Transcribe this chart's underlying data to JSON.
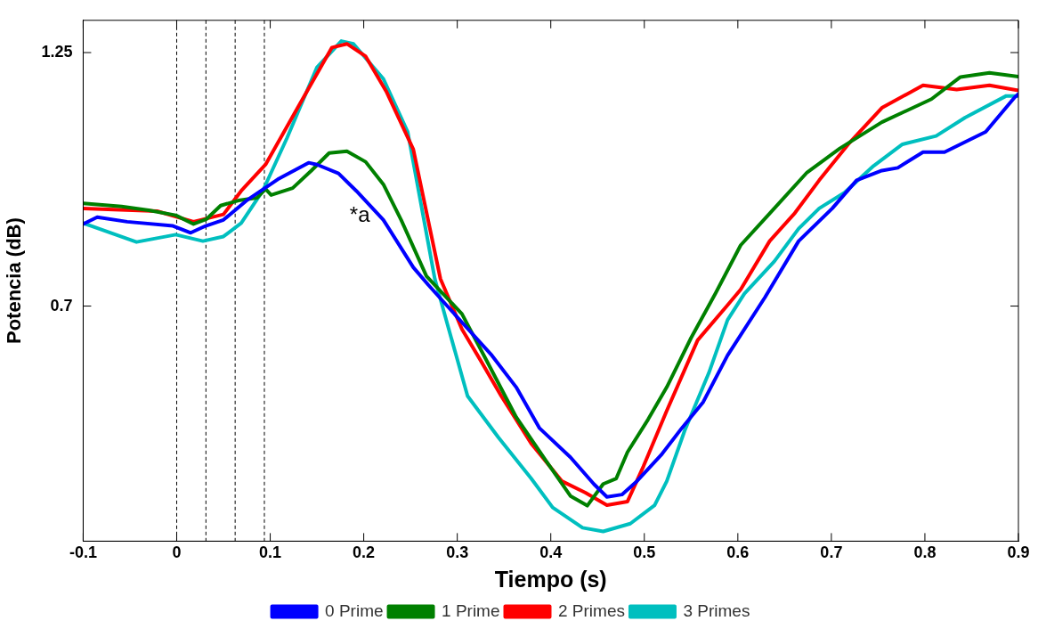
{
  "chart_data": {
    "type": "line",
    "xlabel": "Tiempo (s)",
    "ylabel": "Potencia (dB)",
    "xlim": [
      -0.1,
      0.9
    ],
    "xticks": [
      -0.1,
      0,
      0.1,
      0.2,
      0.3,
      0.4,
      0.5,
      0.6,
      0.7,
      0.8,
      0.9
    ],
    "ylim": [
      0.19,
      1.32
    ],
    "yticks": [
      0.7,
      1.25
    ],
    "grid": false,
    "legend": "bottom",
    "marker": "none",
    "line_style": "solid",
    "annotations": [
      {
        "text": "*a",
        "x": 0.192,
        "y": 0.95
      }
    ],
    "ref_lines": [
      {
        "axis": "x",
        "value": 0,
        "color": "#000000",
        "line_style": "dashed"
      },
      {
        "axis": "x",
        "value": 0.03125,
        "color": "#000000",
        "line_style": "dashed"
      },
      {
        "axis": "x",
        "value": 0.0625,
        "color": "#000000",
        "line_style": "dashed"
      },
      {
        "axis": "x",
        "value": 0.09375,
        "color": "#000000",
        "line_style": "dashed"
      }
    ],
    "series": [
      {
        "name": "0 Prime",
        "color": "#0000ff",
        "x": [
          -0.1,
          -0.085,
          -0.053,
          -0.004,
          0.015,
          0.031,
          0.05,
          0.076,
          0.108,
          0.141,
          0.15,
          0.173,
          0.192,
          0.221,
          0.253,
          0.269,
          0.308,
          0.337,
          0.363,
          0.388,
          0.421,
          0.446,
          0.46,
          0.476,
          0.492,
          0.518,
          0.54,
          0.563,
          0.589,
          0.629,
          0.665,
          0.701,
          0.727,
          0.754,
          0.771,
          0.798,
          0.821,
          0.865,
          0.896,
          0.9
        ],
        "values": [
          0.878,
          0.893,
          0.883,
          0.874,
          0.859,
          0.874,
          0.887,
          0.931,
          0.975,
          1.011,
          1.007,
          0.988,
          0.95,
          0.887,
          0.784,
          0.746,
          0.658,
          0.593,
          0.524,
          0.435,
          0.372,
          0.314,
          0.286,
          0.291,
          0.32,
          0.377,
          0.435,
          0.492,
          0.593,
          0.719,
          0.841,
          0.912,
          0.973,
          0.994,
          1.0,
          1.034,
          1.034,
          1.078,
          1.153,
          1.16
        ]
      },
      {
        "name": "1 Prime",
        "color": "#008000",
        "x": [
          -0.1,
          -0.059,
          -0.03,
          -0.001,
          0.018,
          0.032,
          0.047,
          0.066,
          0.086,
          0.095,
          0.101,
          0.124,
          0.144,
          0.163,
          0.182,
          0.202,
          0.221,
          0.24,
          0.267,
          0.305,
          0.33,
          0.363,
          0.395,
          0.421,
          0.439,
          0.456,
          0.47,
          0.482,
          0.504,
          0.524,
          0.55,
          0.576,
          0.603,
          0.639,
          0.674,
          0.709,
          0.754,
          0.807,
          0.838,
          0.869,
          0.9
        ],
        "values": [
          0.923,
          0.916,
          0.908,
          0.897,
          0.878,
          0.889,
          0.918,
          0.929,
          0.935,
          0.954,
          0.941,
          0.956,
          0.994,
          1.032,
          1.036,
          1.013,
          0.964,
          0.887,
          0.765,
          0.683,
          0.587,
          0.459,
          0.364,
          0.288,
          0.267,
          0.314,
          0.326,
          0.383,
          0.454,
          0.524,
          0.631,
          0.727,
          0.832,
          0.912,
          0.99,
          1.042,
          1.099,
          1.149,
          1.197,
          1.206,
          1.198
        ]
      },
      {
        "name": "2 Primes",
        "color": "#ff0000",
        "x": [
          -0.1,
          -0.021,
          0.018,
          0.05,
          0.069,
          0.095,
          0.127,
          0.166,
          0.182,
          0.202,
          0.224,
          0.253,
          0.282,
          0.305,
          0.325,
          0.347,
          0.379,
          0.412,
          0.437,
          0.46,
          0.482,
          0.499,
          0.524,
          0.557,
          0.589,
          0.603,
          0.634,
          0.661,
          0.687,
          0.718,
          0.754,
          0.798,
          0.834,
          0.869,
          0.9
        ],
        "values": [
          0.912,
          0.906,
          0.883,
          0.899,
          0.95,
          1.007,
          1.122,
          1.261,
          1.269,
          1.242,
          1.166,
          1.04,
          0.759,
          0.65,
          0.582,
          0.505,
          0.402,
          0.32,
          0.295,
          0.268,
          0.276,
          0.352,
          0.473,
          0.626,
          0.702,
          0.736,
          0.841,
          0.902,
          0.973,
          1.051,
          1.13,
          1.179,
          1.17,
          1.179,
          1.168
        ]
      },
      {
        "name": "3 Primes",
        "color": "#00bfbf",
        "x": [
          -0.1,
          -0.043,
          -0.001,
          0.028,
          0.05,
          0.069,
          0.092,
          0.118,
          0.15,
          0.176,
          0.189,
          0.221,
          0.247,
          0.276,
          0.289,
          0.311,
          0.344,
          0.379,
          0.402,
          0.434,
          0.456,
          0.485,
          0.511,
          0.524,
          0.543,
          0.569,
          0.589,
          0.607,
          0.639,
          0.665,
          0.687,
          0.714,
          0.745,
          0.776,
          0.812,
          0.843,
          0.887,
          0.9
        ],
        "values": [
          0.88,
          0.839,
          0.855,
          0.841,
          0.851,
          0.88,
          0.95,
          1.065,
          1.218,
          1.275,
          1.269,
          1.193,
          1.078,
          0.759,
          0.664,
          0.505,
          0.415,
          0.326,
          0.263,
          0.219,
          0.211,
          0.228,
          0.268,
          0.32,
          0.429,
          0.555,
          0.67,
          0.727,
          0.797,
          0.868,
          0.912,
          0.946,
          1.004,
          1.051,
          1.069,
          1.109,
          1.156,
          1.156
        ]
      }
    ]
  }
}
